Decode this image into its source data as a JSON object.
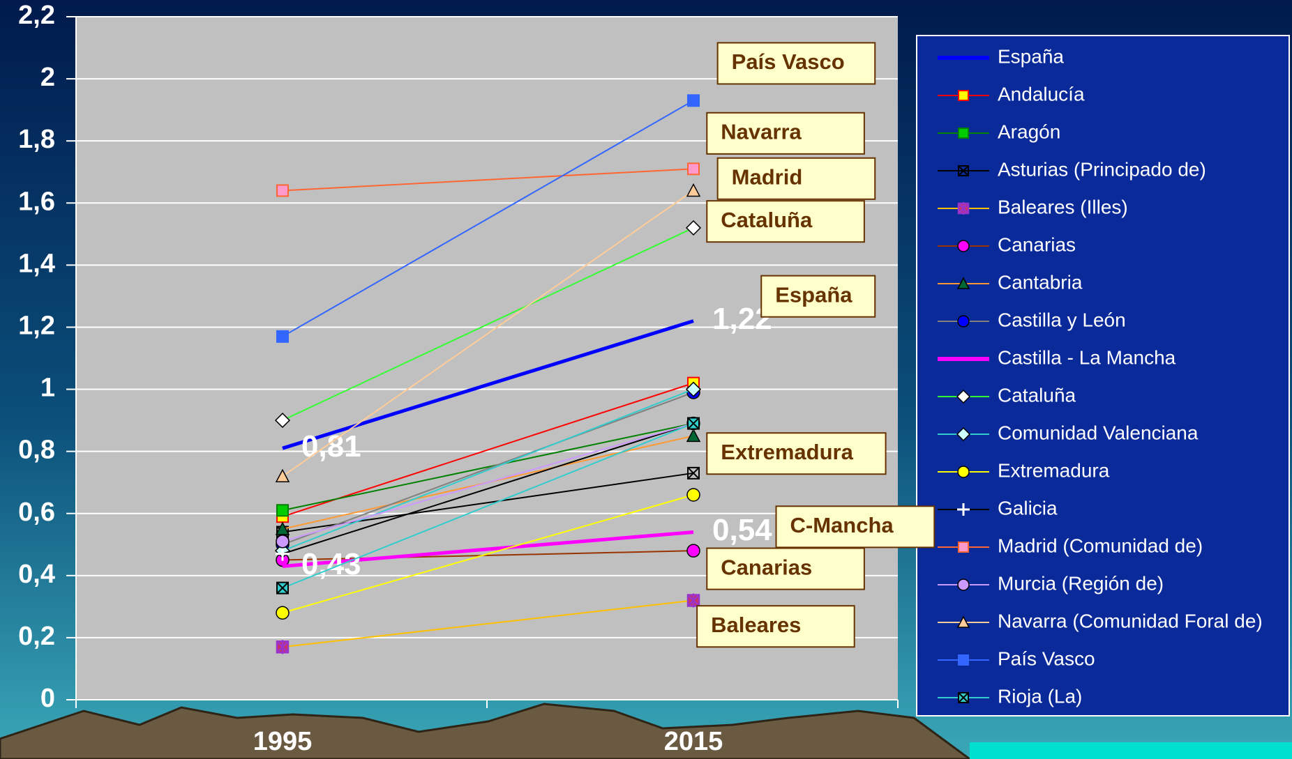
{
  "chart_data": {
    "type": "line",
    "categories": [
      "1995",
      "2015"
    ],
    "ylim": [
      0,
      2.2
    ],
    "yticks": [
      0,
      {
        "value": 0.2,
        "label": "0,2"
      },
      {
        "value": 0.4,
        "label": "0,4"
      },
      {
        "value": 0.6,
        "label": "0,6"
      },
      {
        "value": 0.8,
        "label": "0,8"
      },
      1,
      {
        "value": 1.2,
        "label": "1,2"
      },
      {
        "value": 1.4,
        "label": "1,4"
      },
      {
        "value": 1.6,
        "label": "1,6"
      },
      {
        "value": 1.8,
        "label": "1,8"
      },
      2,
      {
        "value": 2.2,
        "label": "2,2"
      }
    ],
    "grid": true,
    "legend": "right",
    "series": [
      {
        "name": "España",
        "color": "#0000ff",
        "width": 5,
        "marker": "none",
        "values": [
          0.81,
          1.22
        ],
        "value_labels": [
          "0,81",
          "1,22"
        ]
      },
      {
        "name": "Andalucía",
        "color": "#ff0000",
        "marker": "square",
        "marker_color": "#ffff00",
        "values": [
          0.59,
          1.02
        ]
      },
      {
        "name": "Aragón",
        "color": "#008000",
        "marker": "square",
        "marker_color": "#00cc00",
        "values": [
          0.61,
          0.89
        ]
      },
      {
        "name": "Asturias (Principado de)",
        "color": "#000000",
        "marker": "x",
        "marker_color": "#33cccc",
        "values": [
          0.54,
          0.73
        ]
      },
      {
        "name": "Baleares (Illes)",
        "color": "#ffc000",
        "marker": "asterisk",
        "marker_color": "#9933cc",
        "values": [
          0.17,
          0.32
        ]
      },
      {
        "name": "Canarias",
        "color": "#993300",
        "marker": "circle",
        "marker_color": "#ff00ff",
        "values": [
          0.45,
          0.48
        ]
      },
      {
        "name": "Cantabria",
        "color": "#ff9933",
        "marker": "triangle",
        "marker_color": "#006633",
        "values": [
          0.55,
          0.85
        ]
      },
      {
        "name": "Castilla y León",
        "color": "#808080",
        "marker": "circle",
        "marker_color": "#0000ff",
        "values": [
          0.5,
          0.99
        ]
      },
      {
        "name": "Castilla - La Mancha",
        "color": "#ff00ff",
        "width": 5,
        "marker": "none",
        "values": [
          0.43,
          0.54
        ],
        "value_labels": [
          "0,43",
          "0,54"
        ]
      },
      {
        "name": "Cataluña",
        "color": "#33ff33",
        "marker": "diamond",
        "marker_color": "#ffffff",
        "values": [
          0.9,
          1.52
        ]
      },
      {
        "name": "Comunidad Valenciana",
        "color": "#33cccc",
        "marker": "diamond",
        "marker_color": "#ccffff",
        "values": [
          0.48,
          1.0
        ]
      },
      {
        "name": "Extremadura",
        "color": "#ffff00",
        "marker": "circle",
        "marker_color": "#ffff00",
        "values": [
          0.28,
          0.66
        ]
      },
      {
        "name": "Galicia",
        "color": "#000000",
        "marker": "plus",
        "marker_color": "#ffffff",
        "values": [
          0.47,
          0.89
        ]
      },
      {
        "name": "Madrid (Comunidad de)",
        "color": "#ff6633",
        "marker": "square",
        "marker_color": "#ff99cc",
        "values": [
          1.64,
          1.71
        ]
      },
      {
        "name": "Murcia (Región de)",
        "color": "#cc99ff",
        "marker": "circle",
        "marker_color": "#cc99ff",
        "values": [
          0.51,
          0.89
        ]
      },
      {
        "name": "Navarra (Comunidad Foral de)",
        "color": "#ffcc99",
        "marker": "triangle",
        "marker_color": "#ffcc99",
        "values": [
          0.72,
          1.64
        ]
      },
      {
        "name": "País Vasco",
        "color": "#3366ff",
        "marker": "square",
        "marker_color": "#3366ff",
        "values": [
          1.17,
          1.93
        ]
      },
      {
        "name": "Rioja (La)",
        "color": "#33cccc",
        "marker": "x2",
        "marker_color": "#33cccc",
        "values": [
          0.36,
          0.89
        ]
      }
    ],
    "annotations": [
      "País Vasco",
      "Navarra",
      "Madrid",
      "Cataluña",
      "España",
      "Extremadura",
      "C-Mancha",
      "Canarias",
      "Baleares"
    ]
  }
}
